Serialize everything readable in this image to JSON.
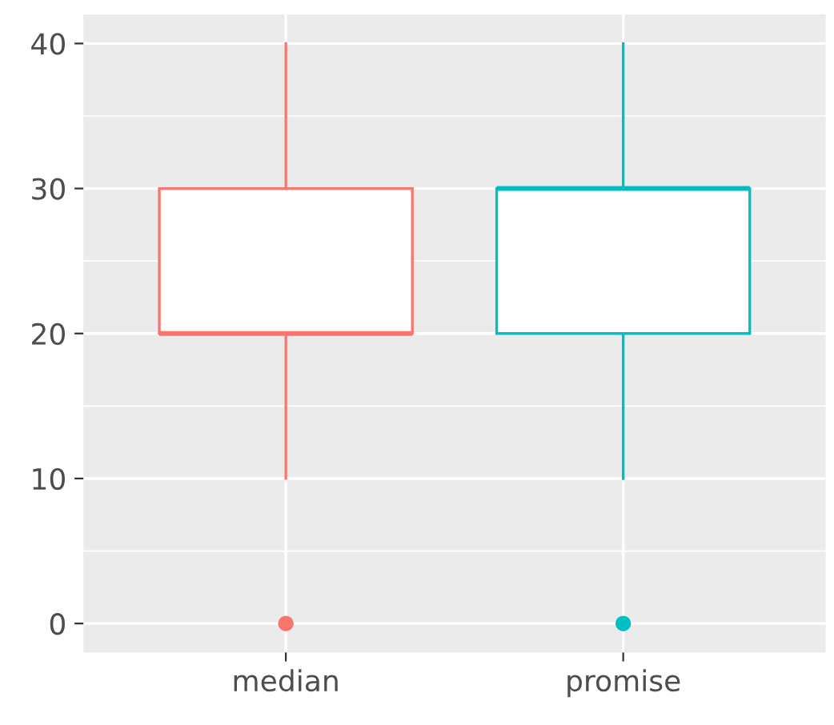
{
  "chart_data": {
    "type": "box",
    "categories": [
      "median",
      "promise"
    ],
    "series": [
      {
        "color": "#f8766d",
        "boxes": [
          {
            "low": 10,
            "q1": 20,
            "median": 20,
            "q3": 30,
            "high": 40,
            "outliers": [
              0
            ]
          },
          null
        ]
      },
      {
        "color": "#00bfc4",
        "boxes": [
          null,
          {
            "low": 10,
            "q1": 20,
            "median": 30,
            "q3": 30,
            "high": 40,
            "outliers": [
              0
            ]
          }
        ]
      }
    ],
    "ylim": [
      -2,
      42
    ],
    "yticks": [
      0,
      10,
      20,
      30,
      40
    ],
    "grid": true
  }
}
